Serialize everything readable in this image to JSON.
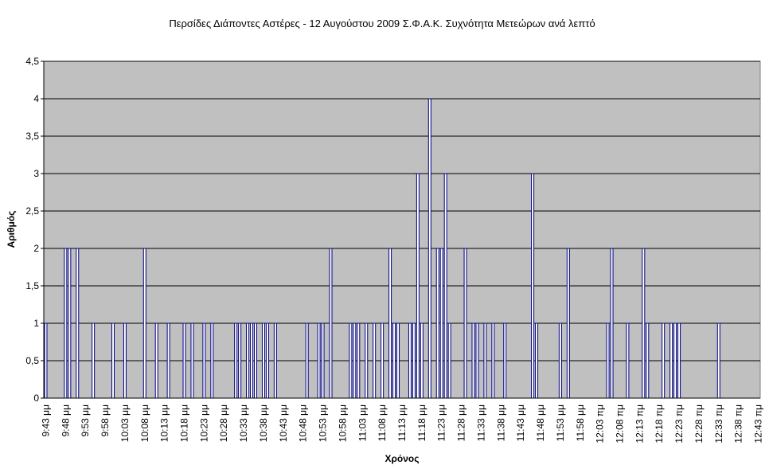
{
  "chart_data": {
    "type": "bar",
    "title": "Περσίδες Διάποντες Αστέρες - 12 Αυγούστου 2009 Σ.Φ.Α.Κ. Συχνότητα Μετεώρων ανά λεπτό",
    "y_label": "Αριθμός",
    "x_label": "Χρόνος",
    "categories": [
      "9:43 μμ",
      null,
      null,
      null,
      null,
      "9:48 μμ",
      null,
      null,
      null,
      null,
      "9:53 μμ",
      null,
      null,
      null,
      null,
      "9:58 μμ",
      null,
      null,
      null,
      null,
      "10:03 μμ",
      null,
      null,
      null,
      null,
      "10:08 μμ",
      null,
      null,
      null,
      null,
      "10:13 μμ",
      null,
      null,
      null,
      null,
      "10:18 μμ",
      null,
      null,
      null,
      null,
      "10:23 μμ",
      null,
      null,
      null,
      null,
      "10:28 μμ",
      null,
      null,
      null,
      null,
      "10:33 μμ",
      null,
      null,
      null,
      null,
      "10:38 μμ",
      null,
      null,
      null,
      null,
      "10:43 μμ",
      null,
      null,
      null,
      null,
      "10:48 μμ",
      null,
      null,
      null,
      null,
      "10:53 μμ",
      null,
      null,
      null,
      null,
      "10:58 μμ",
      null,
      null,
      null,
      null,
      "11:03 μμ",
      null,
      null,
      null,
      null,
      "11:08 μμ",
      null,
      null,
      null,
      null,
      "11:13 μμ",
      null,
      null,
      null,
      null,
      "11:18 μμ",
      null,
      null,
      null,
      null,
      "11:23 μμ",
      null,
      null,
      null,
      null,
      "11:28 μμ",
      null,
      null,
      null,
      null,
      "11:33 μμ",
      null,
      null,
      null,
      null,
      "11:38 μμ",
      null,
      null,
      null,
      null,
      "11:43 μμ",
      null,
      null,
      null,
      null,
      "11:48 μμ",
      null,
      null,
      null,
      null,
      "11:53 μμ",
      null,
      null,
      null,
      null,
      "11:58 μμ",
      null,
      null,
      null,
      null,
      "12:03 πμ",
      null,
      null,
      null,
      null,
      "12:08 πμ",
      null,
      null,
      null,
      null,
      "12:13 πμ",
      null,
      null,
      null,
      null,
      "12:18 πμ",
      null,
      null,
      null,
      null,
      "12:23 πμ",
      null,
      null,
      null,
      null,
      "12:28 πμ",
      null,
      null,
      null,
      null,
      "12:33 πμ",
      null,
      null,
      null,
      null,
      "12:38 πμ",
      null,
      null,
      null,
      null,
      "12:43 πμ"
    ],
    "values": [
      1,
      0,
      0,
      0,
      0,
      2,
      2,
      0,
      2,
      0,
      0,
      0,
      1,
      0,
      0,
      0,
      0,
      1,
      0,
      0,
      1,
      0,
      0,
      0,
      0,
      2,
      0,
      0,
      1,
      0,
      0,
      1,
      0,
      0,
      0,
      1,
      0,
      1,
      0,
      0,
      1,
      0,
      1,
      0,
      0,
      0,
      0,
      0,
      1,
      1,
      0,
      1,
      1,
      1,
      0,
      1,
      1,
      0,
      1,
      0,
      0,
      0,
      0,
      0,
      0,
      0,
      1,
      0,
      0,
      1,
      1,
      0,
      2,
      0,
      0,
      0,
      0,
      1,
      1,
      1,
      0,
      1,
      0,
      1,
      0,
      1,
      0,
      2,
      1,
      1,
      0,
      0,
      1,
      1,
      3,
      1,
      0,
      4,
      0,
      2,
      2,
      3,
      1,
      0,
      0,
      0,
      2,
      0,
      1,
      1,
      0,
      1,
      0,
      1,
      0,
      0,
      1,
      0,
      0,
      0,
      0,
      0,
      0,
      3,
      1,
      0,
      0,
      0,
      0,
      0,
      1,
      0,
      2,
      0,
      0,
      0,
      0,
      0,
      0,
      0,
      0,
      0,
      1,
      2,
      0,
      0,
      0,
      1,
      0,
      0,
      0,
      2,
      1,
      0,
      0,
      0,
      1,
      0,
      1,
      1,
      1,
      0,
      0,
      0,
      0,
      0,
      0,
      0,
      0,
      0,
      1,
      0,
      0,
      0,
      0,
      0,
      0,
      0,
      0,
      0,
      0
    ],
    "color": "#000080",
    "ylim": [
      0,
      4.5
    ],
    "yticks": [
      0,
      {
        "value": 0.5,
        "label": "0,5"
      },
      1,
      {
        "value": 1.5,
        "label": "1,5"
      },
      2,
      {
        "value": 2.5,
        "label": "2,5"
      },
      3,
      {
        "value": 3.5,
        "label": "3,5"
      },
      4,
      {
        "value": 4.5,
        "label": "4,5"
      }
    ],
    "grid": true
  }
}
